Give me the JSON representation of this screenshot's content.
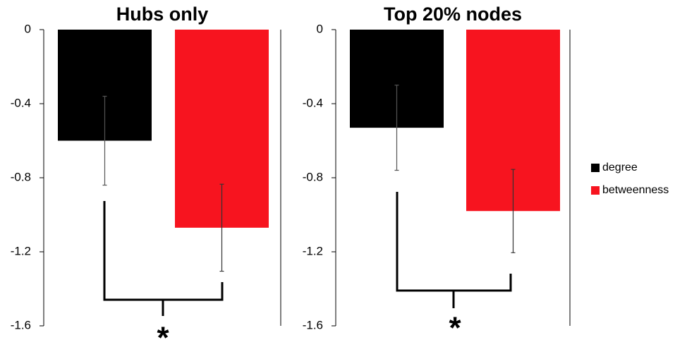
{
  "chart_data": [
    {
      "type": "bar",
      "title": "Hubs only",
      "annotation": "*",
      "categories": [
        null
      ],
      "series": [
        {
          "name": "degree",
          "color": "#000000",
          "values": [
            -0.6
          ],
          "errors": [
            0.24
          ]
        },
        {
          "name": "betweenness",
          "color": "#f7141f",
          "values": [
            -1.07
          ],
          "errors": [
            0.235
          ]
        }
      ],
      "ylim": [
        -1.6,
        0
      ],
      "yticks": [
        0,
        -0.4,
        -0.8,
        -1.2,
        -1.6
      ]
    },
    {
      "type": "bar",
      "title": "Top 20% nodes",
      "annotation": "*",
      "categories": [
        null
      ],
      "series": [
        {
          "name": "degree",
          "color": "#000000",
          "values": [
            -0.53
          ],
          "errors": [
            0.23
          ]
        },
        {
          "name": "betweenness",
          "color": "#f7141f",
          "values": [
            -0.98
          ],
          "errors": [
            0.225
          ]
        }
      ],
      "ylim": [
        -1.6,
        0
      ],
      "yticks": [
        0,
        -0.4,
        -0.8,
        -1.2,
        -1.6
      ]
    }
  ]
}
